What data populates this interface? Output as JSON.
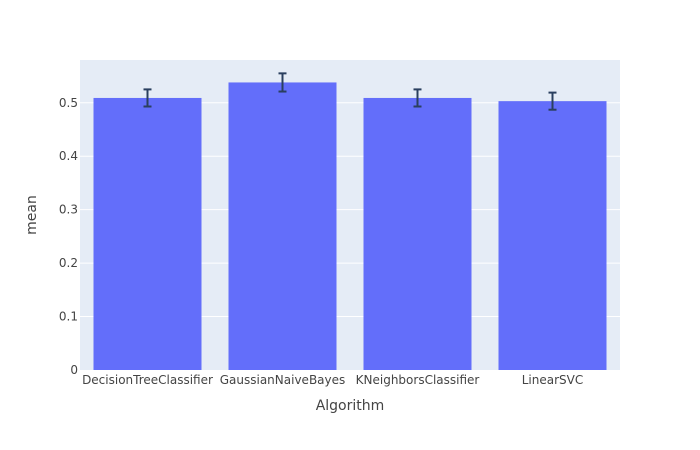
{
  "chart_data": {
    "type": "bar",
    "xlabel": "Algorithm",
    "ylabel": "mean",
    "categories": [
      "DecisionTreeClassifier",
      "GaussianNaiveBayes",
      "KNeighborsClassifier",
      "LinearSVC"
    ],
    "values": [
      0.509,
      0.538,
      0.509,
      0.503
    ],
    "error_y": [
      0.016,
      0.017,
      0.016,
      0.016
    ],
    "ylim": [
      0,
      0.58
    ],
    "yticks": [
      0,
      0.1,
      0.2,
      0.3,
      0.4,
      0.5
    ],
    "ytick_labels": [
      "0",
      "0.1",
      "0.2",
      "0.3",
      "0.4",
      "0.5"
    ],
    "grid": true,
    "colors": {
      "bar": "#636efa",
      "plot_bg": "#e5ecf6",
      "grid": "#ffffff",
      "error_bar": "#2a3f5f"
    }
  }
}
